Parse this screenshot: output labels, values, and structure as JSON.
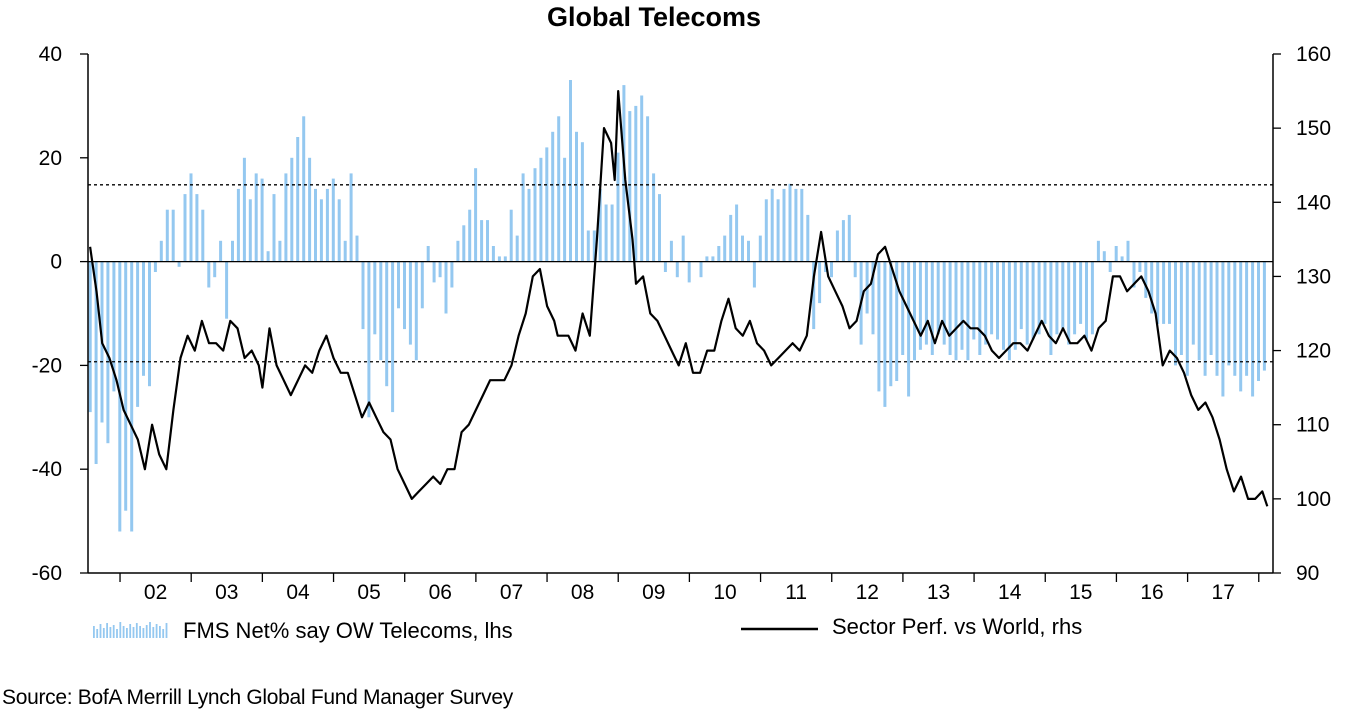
{
  "chart_data": {
    "type": "bar",
    "title": "Global Telecoms",
    "x_labels": [
      "02",
      "03",
      "04",
      "05",
      "06",
      "07",
      "08",
      "09",
      "10",
      "11",
      "12",
      "13",
      "14",
      "15",
      "16",
      "17"
    ],
    "y_left": {
      "ticks": [
        "40",
        "20",
        "0",
        "-20",
        "-40",
        "-60"
      ],
      "lim": [
        -60,
        40
      ]
    },
    "y_right": {
      "ticks": [
        "160",
        "150",
        "140",
        "130",
        "120",
        "110",
        "100",
        "90"
      ],
      "lim": [
        90,
        160
      ]
    },
    "reference_lines_lhs": [
      14.8,
      -19.3
    ],
    "x_range": [
      2001.55,
      2018.2
    ],
    "colors": {
      "bars": "#94c8f0",
      "line": "#000000",
      "axis": "#000000"
    },
    "legend": [
      {
        "label": "FMS Net% say OW Telecoms, lhs",
        "type": "bar"
      },
      {
        "label": "Sector Perf. vs World, rhs",
        "type": "line"
      }
    ],
    "series": [
      {
        "name": "FMS Net% say OW Telecoms, lhs",
        "type": "bar",
        "axis": "left",
        "start": 2001.58,
        "step": 0.08333,
        "values": [
          -29,
          -39,
          -31,
          -35,
          -25,
          -52,
          -48,
          -52,
          -28,
          -22,
          -24,
          -2,
          4,
          10,
          10,
          -1,
          13,
          17,
          13,
          10,
          -5,
          -3,
          4,
          -11,
          4,
          14,
          20,
          12,
          17,
          16,
          2,
          13,
          4,
          17,
          20,
          24,
          28,
          20,
          14,
          12,
          14,
          16,
          12,
          4,
          17,
          5,
          -13,
          -30,
          -14,
          -19,
          -24,
          -29,
          -9,
          -13,
          -16,
          -19,
          -9,
          3,
          -4,
          -3,
          -10,
          -5,
          4,
          7,
          10,
          18,
          8,
          8,
          3,
          1,
          1,
          10,
          5,
          17,
          14,
          18,
          20,
          22,
          25,
          28,
          20,
          35,
          25,
          23,
          6,
          6,
          14,
          11,
          11,
          21,
          34,
          29,
          30,
          32,
          28,
          17,
          13,
          -2,
          4,
          -3,
          5,
          -4,
          0,
          -3,
          1,
          1,
          3,
          5,
          9,
          11,
          5,
          4,
          -5,
          5,
          12,
          14,
          12,
          14,
          15,
          14,
          14,
          9,
          -13,
          -8,
          -2,
          -3,
          6,
          8,
          9,
          -3,
          -16,
          -10,
          -14,
          -25,
          -28,
          -24,
          -23,
          -18,
          -26,
          -19,
          -17,
          -16,
          -18,
          -14,
          -16,
          -18,
          -19,
          -17,
          -19,
          -15,
          -18,
          -16,
          -14,
          -15,
          -17,
          -19,
          -17,
          -13,
          -16,
          -15,
          -14,
          -12,
          -18,
          -14,
          -13,
          -16,
          -14,
          -12,
          -15,
          -14,
          4,
          2,
          -2,
          3,
          1,
          4,
          -5,
          -2,
          -7,
          -10,
          -12,
          -12,
          -12,
          -20,
          -18,
          -22,
          -16,
          -19,
          -22,
          -18,
          -22,
          -26,
          -20,
          -22,
          -25,
          -22,
          -26,
          -23,
          -21
        ]
      },
      {
        "name": "Sector Perf. vs World, rhs",
        "type": "line",
        "axis": "right",
        "points": [
          [
            2001.58,
            134
          ],
          [
            2001.67,
            128
          ],
          [
            2001.75,
            121
          ],
          [
            2001.85,
            119
          ],
          [
            2001.95,
            116
          ],
          [
            2002.05,
            112
          ],
          [
            2002.15,
            110
          ],
          [
            2002.25,
            108
          ],
          [
            2002.35,
            104
          ],
          [
            2002.45,
            110
          ],
          [
            2002.55,
            106
          ],
          [
            2002.65,
            104
          ],
          [
            2002.75,
            112
          ],
          [
            2002.85,
            119
          ],
          [
            2002.95,
            122
          ],
          [
            2003.05,
            120
          ],
          [
            2003.15,
            124
          ],
          [
            2003.25,
            121
          ],
          [
            2003.35,
            121
          ],
          [
            2003.45,
            120
          ],
          [
            2003.55,
            124
          ],
          [
            2003.65,
            123
          ],
          [
            2003.75,
            119
          ],
          [
            2003.85,
            120
          ],
          [
            2003.95,
            118
          ],
          [
            2004.0,
            115
          ],
          [
            2004.1,
            123
          ],
          [
            2004.2,
            118
          ],
          [
            2004.3,
            116
          ],
          [
            2004.4,
            114
          ],
          [
            2004.5,
            116
          ],
          [
            2004.6,
            118
          ],
          [
            2004.7,
            117
          ],
          [
            2004.8,
            120
          ],
          [
            2004.9,
            122
          ],
          [
            2005.0,
            119
          ],
          [
            2005.1,
            117
          ],
          [
            2005.2,
            117
          ],
          [
            2005.3,
            114
          ],
          [
            2005.4,
            111
          ],
          [
            2005.5,
            113
          ],
          [
            2005.6,
            111
          ],
          [
            2005.7,
            109
          ],
          [
            2005.8,
            108
          ],
          [
            2005.9,
            104
          ],
          [
            2006.0,
            102
          ],
          [
            2006.1,
            100
          ],
          [
            2006.2,
            101
          ],
          [
            2006.3,
            102
          ],
          [
            2006.4,
            103
          ],
          [
            2006.5,
            102
          ],
          [
            2006.6,
            104
          ],
          [
            2006.7,
            104
          ],
          [
            2006.8,
            109
          ],
          [
            2006.9,
            110
          ],
          [
            2007.0,
            112
          ],
          [
            2007.1,
            114
          ],
          [
            2007.2,
            116
          ],
          [
            2007.3,
            116
          ],
          [
            2007.4,
            116
          ],
          [
            2007.5,
            118
          ],
          [
            2007.6,
            122
          ],
          [
            2007.7,
            125
          ],
          [
            2007.8,
            130
          ],
          [
            2007.9,
            131
          ],
          [
            2008.0,
            126
          ],
          [
            2008.1,
            124
          ],
          [
            2008.15,
            122
          ],
          [
            2008.3,
            122
          ],
          [
            2008.4,
            120
          ],
          [
            2008.5,
            125
          ],
          [
            2008.6,
            122
          ],
          [
            2008.7,
            135
          ],
          [
            2008.8,
            150
          ],
          [
            2008.9,
            148
          ],
          [
            2008.95,
            143
          ],
          [
            2009.0,
            155
          ],
          [
            2009.1,
            143
          ],
          [
            2009.2,
            135
          ],
          [
            2009.25,
            129
          ],
          [
            2009.35,
            130
          ],
          [
            2009.45,
            125
          ],
          [
            2009.55,
            124
          ],
          [
            2009.65,
            122
          ],
          [
            2009.75,
            120
          ],
          [
            2009.85,
            118
          ],
          [
            2009.95,
            121
          ],
          [
            2010.05,
            117
          ],
          [
            2010.15,
            117
          ],
          [
            2010.25,
            120
          ],
          [
            2010.35,
            120
          ],
          [
            2010.45,
            124
          ],
          [
            2010.55,
            127
          ],
          [
            2010.65,
            123
          ],
          [
            2010.75,
            122
          ],
          [
            2010.85,
            124
          ],
          [
            2010.95,
            121
          ],
          [
            2011.05,
            120
          ],
          [
            2011.15,
            118
          ],
          [
            2011.25,
            119
          ],
          [
            2011.35,
            120
          ],
          [
            2011.45,
            121
          ],
          [
            2011.55,
            120
          ],
          [
            2011.65,
            122
          ],
          [
            2011.75,
            130
          ],
          [
            2011.85,
            136
          ],
          [
            2011.95,
            130
          ],
          [
            2012.05,
            128
          ],
          [
            2012.15,
            126
          ],
          [
            2012.25,
            123
          ],
          [
            2012.35,
            124
          ],
          [
            2012.45,
            128
          ],
          [
            2012.55,
            129
          ],
          [
            2012.65,
            133
          ],
          [
            2012.75,
            134
          ],
          [
            2012.85,
            131
          ],
          [
            2012.95,
            128
          ],
          [
            2013.05,
            126
          ],
          [
            2013.15,
            124
          ],
          [
            2013.25,
            122
          ],
          [
            2013.35,
            124
          ],
          [
            2013.45,
            121
          ],
          [
            2013.55,
            124
          ],
          [
            2013.65,
            122
          ],
          [
            2013.75,
            123
          ],
          [
            2013.85,
            124
          ],
          [
            2013.95,
            123
          ],
          [
            2014.05,
            123
          ],
          [
            2014.15,
            122
          ],
          [
            2014.25,
            120
          ],
          [
            2014.35,
            119
          ],
          [
            2014.45,
            120
          ],
          [
            2014.55,
            121
          ],
          [
            2014.65,
            121
          ],
          [
            2014.75,
            120
          ],
          [
            2014.85,
            122
          ],
          [
            2014.95,
            124
          ],
          [
            2015.05,
            122
          ],
          [
            2015.15,
            121
          ],
          [
            2015.25,
            123
          ],
          [
            2015.35,
            121
          ],
          [
            2015.45,
            121
          ],
          [
            2015.55,
            122
          ],
          [
            2015.65,
            120
          ],
          [
            2015.75,
            123
          ],
          [
            2015.85,
            124
          ],
          [
            2015.95,
            130
          ],
          [
            2016.05,
            130
          ],
          [
            2016.15,
            128
          ],
          [
            2016.25,
            129
          ],
          [
            2016.35,
            130
          ],
          [
            2016.45,
            128
          ],
          [
            2016.55,
            125
          ],
          [
            2016.65,
            118
          ],
          [
            2016.75,
            120
          ],
          [
            2016.85,
            119
          ],
          [
            2016.95,
            117
          ],
          [
            2017.05,
            114
          ],
          [
            2017.15,
            112
          ],
          [
            2017.25,
            113
          ],
          [
            2017.35,
            111
          ],
          [
            2017.45,
            108
          ],
          [
            2017.55,
            104
          ],
          [
            2017.65,
            101
          ],
          [
            2017.75,
            103
          ],
          [
            2017.85,
            100
          ],
          [
            2017.95,
            100
          ],
          [
            2018.05,
            101
          ],
          [
            2018.12,
            99
          ]
        ]
      }
    ]
  },
  "source": "Source:  BofA Merrill Lynch Global Fund Manager Survey"
}
